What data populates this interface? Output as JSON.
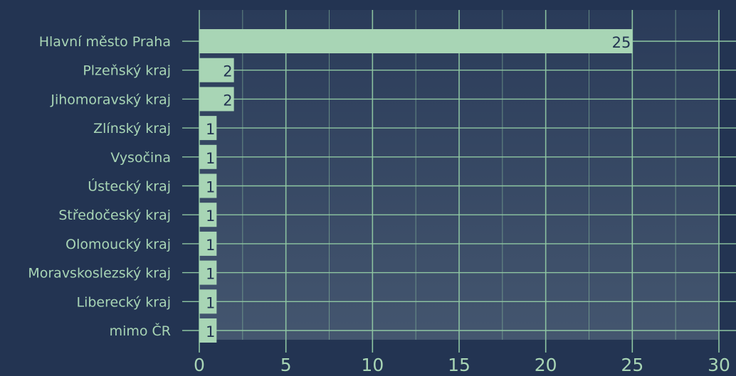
{
  "chart_data": {
    "type": "bar",
    "orientation": "horizontal",
    "categories": [
      "Hlavní město Praha",
      "Plzeňský kraj",
      "Jihomoravský kraj",
      "Zlínský kraj",
      "Vysočina",
      "Ústecký kraj",
      "Středočeský kraj",
      "Olomoucký kraj",
      "Moravskoslezský kraj",
      "Liberecký kraj",
      "mimo ČR"
    ],
    "values": [
      25,
      2,
      2,
      1,
      1,
      1,
      1,
      1,
      1,
      1,
      1
    ],
    "data_labels": [
      "25",
      "2",
      "2",
      "1",
      "1",
      "1",
      "1",
      "1",
      "1",
      "1",
      "1"
    ],
    "x_ticks": [
      0,
      5,
      10,
      15,
      20,
      25,
      30
    ],
    "x_tick_labels": [
      "0",
      "5",
      "10",
      "15",
      "20",
      "25",
      "30"
    ],
    "xlim": [
      0,
      30
    ],
    "grid": true,
    "legend": "none",
    "title": "",
    "xlabel": "",
    "ylabel": "",
    "colors": {
      "background": "#233452",
      "plot_gradient_top": "#2a3b59",
      "plot_gradient_bottom": "#44566f",
      "bar": "#a8d5b5",
      "grid": "#8fc7a2",
      "axis_text": "#a8d5b5",
      "data_label": "#233452"
    }
  }
}
